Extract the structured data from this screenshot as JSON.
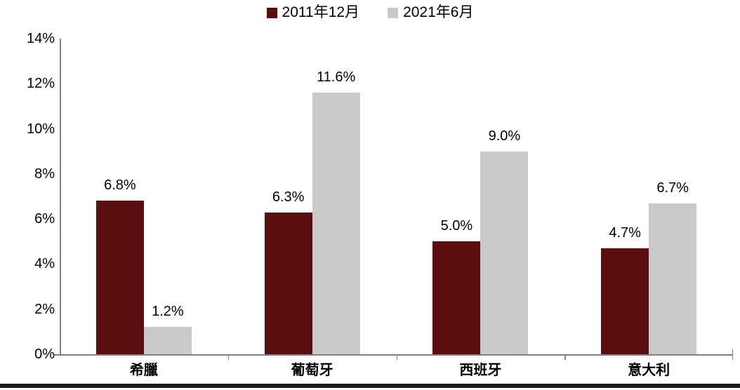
{
  "chart_data": {
    "type": "bar",
    "title": "",
    "categories": [
      "希臘",
      "葡萄牙",
      "西班牙",
      "意大利"
    ],
    "series": [
      {
        "name": "2011年12月",
        "color": "#5C0E0E",
        "values": [
          6.8,
          6.3,
          5.0,
          4.7
        ],
        "value_labels": [
          "6.8%",
          "6.3%",
          "5.0%",
          "4.7%"
        ]
      },
      {
        "name": "2021年6月",
        "color": "#C9C9C9",
        "values": [
          1.2,
          11.6,
          9.0,
          6.7
        ],
        "value_labels": [
          "1.2%",
          "11.6%",
          "9.0%",
          "6.7%"
        ]
      }
    ],
    "ylim": [
      0,
      14
    ],
    "ytick_step": 2,
    "ytick_labels": [
      "0%",
      "2%",
      "4%",
      "6%",
      "8%",
      "10%",
      "12%",
      "14%"
    ],
    "legend_position": "top",
    "grid": false
  },
  "colors": {
    "series_2011": "#5C0E0E",
    "series_2021": "#C9C9C9",
    "axis": "#808080",
    "bottom_rule": "#1A1A1A",
    "text": "#000000"
  }
}
